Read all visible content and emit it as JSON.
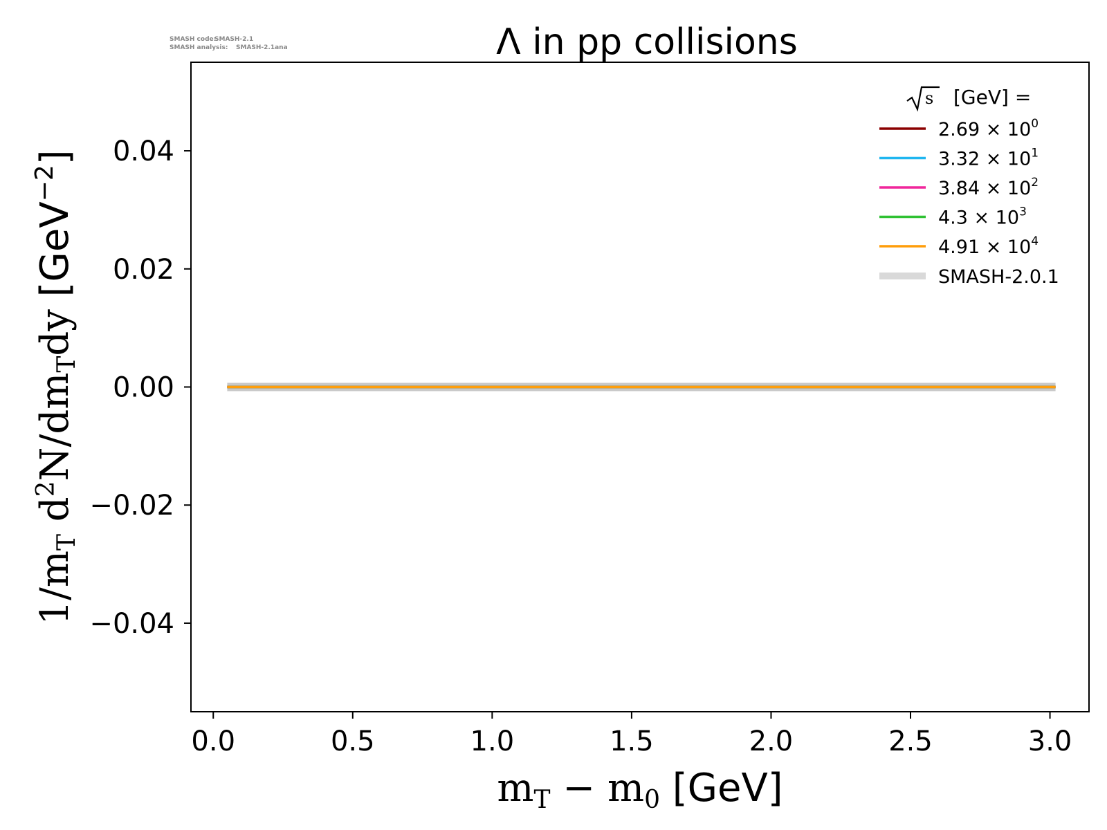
{
  "watermark": {
    "code_label": "SMASH code:",
    "code_value": "SMASH-2.1",
    "analysis_label": "SMASH analysis:",
    "analysis_value": "SMASH-2.1ana"
  },
  "chart_data": {
    "type": "line",
    "title": "Λ in pp collisions",
    "xlabel": {
      "prefix": "m",
      "sub1": "T",
      "minus": " − m",
      "sub2": "0",
      "unit": " [GeV]"
    },
    "ylabel": {
      "one": "1/m",
      "sub1": "T",
      "d": " d",
      "sup": "2",
      "n": "N/dm",
      "sub2": "T",
      "dy": "dy",
      "unit_open": " [GeV",
      "unit_sup": "−2",
      "unit_close": "]"
    },
    "xlim": [
      -0.08,
      3.14
    ],
    "ylim": [
      -0.055,
      0.055
    ],
    "x_ticks": [
      0.0,
      0.5,
      1.0,
      1.5,
      2.0,
      2.5,
      3.0
    ],
    "x_tick_labels": [
      "0.0",
      "0.5",
      "1.0",
      "1.5",
      "2.0",
      "2.5",
      "3.0"
    ],
    "y_ticks": [
      0.04,
      0.02,
      0.0,
      -0.02,
      -0.04
    ],
    "y_tick_labels": [
      "0.04",
      "0.02",
      "0.00",
      "−0.02",
      "−0.04"
    ],
    "grid": false,
    "legend": {
      "placement": "top-right",
      "title_unit": "[GeV] =",
      "entries": [
        {
          "mantissa": "2.69",
          "times": "×",
          "base": "10",
          "exp": "0",
          "color": "#8b0000"
        },
        {
          "mantissa": "3.32",
          "times": "×",
          "base": "10",
          "exp": "1",
          "color": "#1fb6f0"
        },
        {
          "mantissa": "3.84",
          "times": "×",
          "base": "10",
          "exp": "2",
          "color": "#f0269b"
        },
        {
          "mantissa": "4.3",
          "times": "×",
          "base": "10",
          "exp": "3",
          "color": "#2fc132"
        },
        {
          "mantissa": "4.91",
          "times": "×",
          "base": "10",
          "exp": "4",
          "color": "#ff9d0a"
        }
      ],
      "reference": {
        "label": "SMASH-2.0.1",
        "color": "#d9d9d9"
      }
    },
    "series": [
      {
        "name": "SMASH-2.0.1",
        "color": "#c8c8c8",
        "x": [
          0.05,
          3.02
        ],
        "y": [
          0.0,
          0.0
        ]
      },
      {
        "name": "2.69 × 10^0",
        "color": "#8b0000",
        "x": [
          0.05,
          3.02
        ],
        "y": [
          0.0,
          0.0
        ]
      },
      {
        "name": "3.32 × 10^1",
        "color": "#1fb6f0",
        "x": [
          0.05,
          3.02
        ],
        "y": [
          0.0,
          0.0
        ]
      },
      {
        "name": "3.84 × 10^2",
        "color": "#f0269b",
        "x": [
          0.05,
          3.02
        ],
        "y": [
          0.0,
          0.0
        ]
      },
      {
        "name": "4.3 × 10^3",
        "color": "#2fc132",
        "x": [
          0.05,
          3.02
        ],
        "y": [
          0.0,
          0.0
        ]
      },
      {
        "name": "4.91 × 10^4",
        "color": "#ff9d0a",
        "x": [
          0.05,
          3.02
        ],
        "y": [
          0.0,
          0.0
        ]
      }
    ]
  }
}
